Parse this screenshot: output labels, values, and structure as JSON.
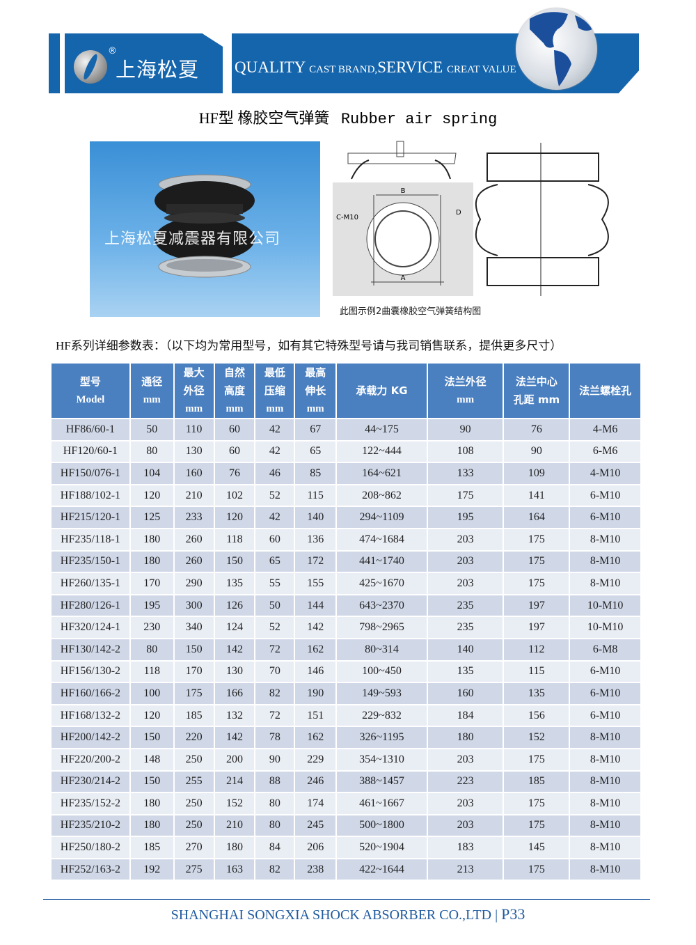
{
  "header": {
    "brand": "上海松夏",
    "registered": "®",
    "slogan_big1": "QUALITY",
    "slogan_small1": "CAST BRAND,",
    "slogan_big2": "SERVICE",
    "slogan_small2": "CREAT VALUE",
    "brand_color": "#1565ad"
  },
  "title": {
    "cn": "HF型 橡胶空气弹簧",
    "en": "Rubber air spring"
  },
  "photo": {
    "watermark": "上海松夏减震器有限公司"
  },
  "diagram": {
    "label_b": "B",
    "label_a": "A",
    "label_c": "C-M10",
    "label_d": "D",
    "caption": "此图示例2曲囊橡胶空气弹簧结构图"
  },
  "intro": "HF系列详细参数表：（以下均为常用型号，如有其它特殊型号请与我司销售联系，提供更多尺寸）",
  "table": {
    "header_color": "#4a7fc0",
    "columns": [
      [
        "型号",
        "Model"
      ],
      [
        "通径",
        "mm"
      ],
      [
        "最大",
        "外径",
        "mm"
      ],
      [
        "自然",
        "高度",
        "mm"
      ],
      [
        "最低",
        "压缩",
        "mm"
      ],
      [
        "最高",
        "伸长",
        "mm"
      ],
      [
        "承载力 KG"
      ],
      [
        "法兰外径",
        "mm"
      ],
      [
        "法兰中心",
        "孔距 mm"
      ],
      [
        "法兰螺栓孔"
      ]
    ],
    "rows": [
      [
        "HF86/60-1",
        "50",
        "110",
        "60",
        "42",
        "67",
        "44~175",
        "90",
        "76",
        "4-M6"
      ],
      [
        "HF120/60-1",
        "80",
        "130",
        "60",
        "42",
        "65",
        "122~444",
        "108",
        "90",
        "6-M6"
      ],
      [
        "HF150/076-1",
        "104",
        "160",
        "76",
        "46",
        "85",
        "164~621",
        "133",
        "109",
        "4-M10"
      ],
      [
        "HF188/102-1",
        "120",
        "210",
        "102",
        "52",
        "115",
        "208~862",
        "175",
        "141",
        "6-M10"
      ],
      [
        "HF215/120-1",
        "125",
        "233",
        "120",
        "42",
        "140",
        "294~1109",
        "195",
        "164",
        "6-M10"
      ],
      [
        "HF235/118-1",
        "180",
        "260",
        "118",
        "60",
        "136",
        "474~1684",
        "203",
        "175",
        "8-M10"
      ],
      [
        "HF235/150-1",
        "180",
        "260",
        "150",
        "65",
        "172",
        "441~1740",
        "203",
        "175",
        "8-M10"
      ],
      [
        "HF260/135-1",
        "170",
        "290",
        "135",
        "55",
        "155",
        "425~1670",
        "203",
        "175",
        "8-M10"
      ],
      [
        "HF280/126-1",
        "195",
        "300",
        "126",
        "50",
        "144",
        "643~2370",
        "235",
        "197",
        "10-M10"
      ],
      [
        "HF320/124-1",
        "230",
        "340",
        "124",
        "52",
        "142",
        "798~2965",
        "235",
        "197",
        "10-M10"
      ],
      [
        "HF130/142-2",
        "80",
        "150",
        "142",
        "72",
        "162",
        "80~314",
        "140",
        "112",
        "6-M8"
      ],
      [
        "HF156/130-2",
        "118",
        "170",
        "130",
        "70",
        "146",
        "100~450",
        "135",
        "115",
        "6-M10"
      ],
      [
        "HF160/166-2",
        "100",
        "175",
        "166",
        "82",
        "190",
        "149~593",
        "160",
        "135",
        "6-M10"
      ],
      [
        "HF168/132-2",
        "120",
        "185",
        "132",
        "72",
        "151",
        "229~832",
        "184",
        "156",
        "6-M10"
      ],
      [
        "HF200/142-2",
        "150",
        "220",
        "142",
        "78",
        "162",
        "326~1195",
        "180",
        "152",
        "8-M10"
      ],
      [
        "HF220/200-2",
        "148",
        "250",
        "200",
        "90",
        "229",
        "354~1310",
        "203",
        "175",
        "8-M10"
      ],
      [
        "HF230/214-2",
        "150",
        "255",
        "214",
        "88",
        "246",
        "388~1457",
        "223",
        "185",
        "8-M10"
      ],
      [
        "HF235/152-2",
        "180",
        "250",
        "152",
        "80",
        "174",
        "461~1667",
        "203",
        "175",
        "8-M10"
      ],
      [
        "HF235/210-2",
        "180",
        "250",
        "210",
        "80",
        "245",
        "500~1800",
        "203",
        "175",
        "8-M10"
      ],
      [
        "HF250/180-2",
        "185",
        "270",
        "180",
        "84",
        "206",
        "520~1904",
        "183",
        "145",
        "8-M10"
      ],
      [
        "HF252/163-2",
        "192",
        "275",
        "163",
        "82",
        "238",
        "422~1644",
        "213",
        "175",
        "8-M10"
      ]
    ]
  },
  "footer": {
    "company": "SHANGHAI SONGXIA SHOCK ABSORBER CO.,LTD",
    "separator": "|",
    "page": "P33"
  }
}
